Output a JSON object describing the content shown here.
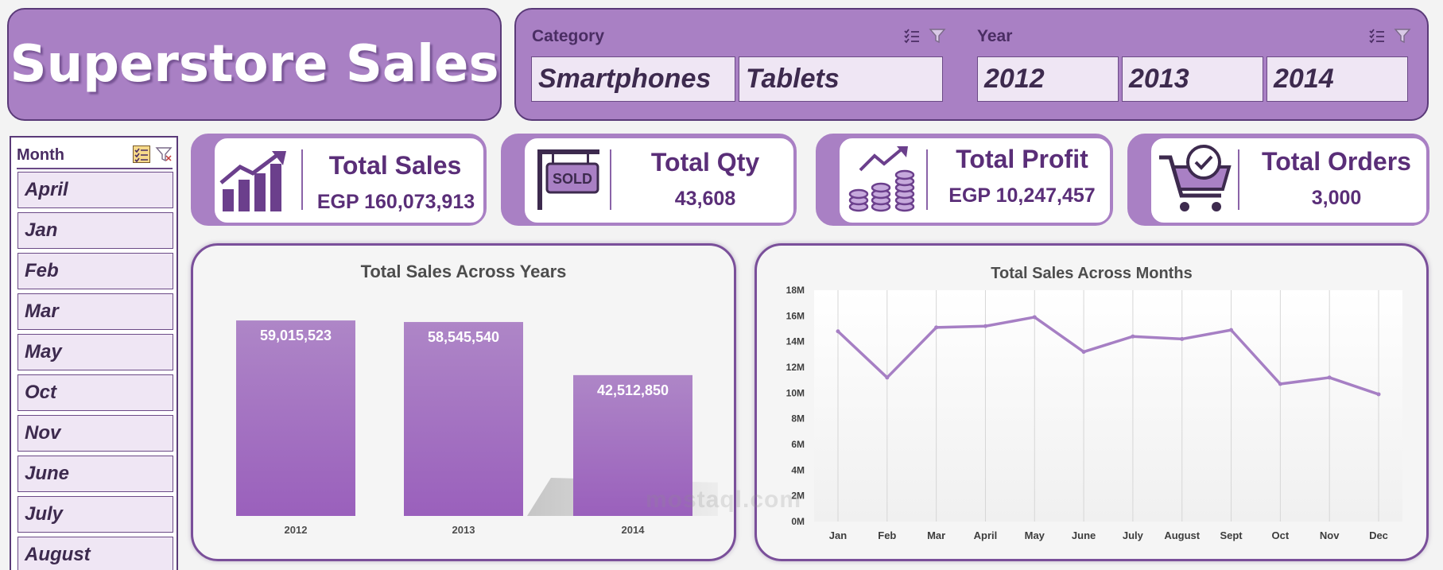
{
  "header": {
    "title": "Superstore Sales"
  },
  "slicers": {
    "category": {
      "label": "Category",
      "options": [
        "Smartphones",
        "Tablets"
      ]
    },
    "year": {
      "label": "Year",
      "options": [
        "2012",
        "2013",
        "2014"
      ]
    }
  },
  "month_slicer": {
    "label": "Month",
    "options": [
      "April",
      "Jan",
      "Feb",
      "Mar",
      "May",
      "Oct",
      "Nov",
      "June",
      "July",
      "August"
    ]
  },
  "kpis": {
    "sales": {
      "label": "Total Sales",
      "value": "EGP 160,073,913",
      "icon": "rising-bar-chart-icon"
    },
    "qty": {
      "label": "Total Qty",
      "value": "43,608",
      "icon": "sold-sign-icon",
      "sign_text": "SOLD"
    },
    "profit": {
      "label": "Total Profit",
      "value": "EGP 10,247,457",
      "icon": "coins-growth-icon"
    },
    "orders": {
      "label": "Total Orders",
      "value": "3,000",
      "icon": "shopping-cart-check-icon"
    }
  },
  "chart_data": [
    {
      "type": "bar",
      "title": "Total Sales Across Years",
      "categories": [
        "2012",
        "2013",
        "2014"
      ],
      "values": [
        59015523,
        58545540,
        42512850
      ],
      "data_labels": [
        "59,015,523",
        "58,545,540",
        "42,512,850"
      ],
      "xlabel": "",
      "ylabel": ""
    },
    {
      "type": "line",
      "title": "Total Sales Across Months",
      "categories": [
        "Jan",
        "Feb",
        "Mar",
        "April",
        "May",
        "June",
        "July",
        "August",
        "Sept",
        "Oct",
        "Nov",
        "Dec"
      ],
      "values": [
        14.8,
        11.2,
        15.1,
        15.2,
        15.9,
        13.2,
        14.4,
        14.2,
        14.9,
        10.7,
        11.2,
        9.9
      ],
      "unit": "M",
      "ylim": [
        0,
        18
      ],
      "yticks": [
        "0M",
        "2M",
        "4M",
        "6M",
        "8M",
        "10M",
        "12M",
        "14M",
        "16M",
        "18M"
      ],
      "grid": "vertical",
      "xlabel": "",
      "ylabel": ""
    }
  ],
  "watermark": {
    "text": "mostaql.com"
  },
  "colors": {
    "primary": "#a980c4",
    "dark": "#5a3a78",
    "bar_top": "#ae86c7",
    "bar_bottom": "#9a60bc",
    "line": "#a67fc4"
  }
}
